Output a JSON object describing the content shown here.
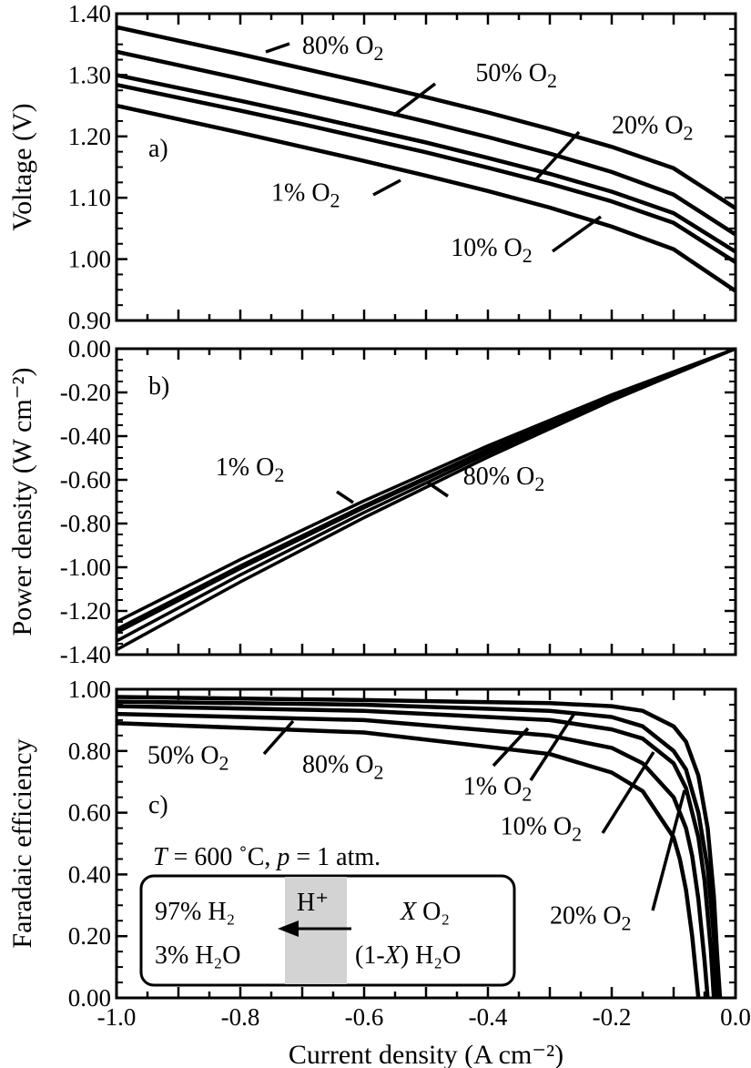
{
  "chart_data": [
    {
      "panel": "a)",
      "type": "line",
      "ylabel": "Voltage (V)",
      "xlabel": "",
      "xlim": [
        -1.0,
        0.0
      ],
      "ylim": [
        0.9,
        1.4
      ],
      "ytick_values": [
        0.9,
        1.0,
        1.1,
        1.2,
        1.3,
        1.4
      ],
      "ytick_labels": [
        "0.90",
        "1.00",
        "1.10",
        "1.20",
        "1.30",
        "1.40"
      ],
      "series": [
        {
          "name": "80% O2",
          "x": [
            -1.0,
            -0.9,
            -0.8,
            -0.7,
            -0.6,
            -0.5,
            -0.4,
            -0.3,
            -0.2,
            -0.1,
            0.0
          ],
          "y": [
            1.378,
            1.356,
            1.334,
            1.311,
            1.288,
            1.264,
            1.239,
            1.212,
            1.183,
            1.148,
            1.083
          ]
        },
        {
          "name": "50% O2",
          "x": [
            -1.0,
            -0.9,
            -0.8,
            -0.7,
            -0.6,
            -0.5,
            -0.4,
            -0.3,
            -0.2,
            -0.1,
            0.0
          ],
          "y": [
            1.338,
            1.316,
            1.294,
            1.271,
            1.248,
            1.224,
            1.199,
            1.172,
            1.142,
            1.105,
            1.04
          ]
        },
        {
          "name": "20% O2",
          "x": [
            -1.0,
            -0.9,
            -0.8,
            -0.7,
            -0.6,
            -0.5,
            -0.4,
            -0.3,
            -0.2,
            -0.1,
            0.0
          ],
          "y": [
            1.3,
            1.279,
            1.258,
            1.236,
            1.213,
            1.19,
            1.165,
            1.139,
            1.11,
            1.075,
            1.012
          ]
        },
        {
          "name": "10% O2",
          "x": [
            -1.0,
            -0.9,
            -0.8,
            -0.7,
            -0.6,
            -0.5,
            -0.4,
            -0.3,
            -0.2,
            -0.1,
            0.0
          ],
          "y": [
            1.284,
            1.263,
            1.242,
            1.22,
            1.197,
            1.174,
            1.149,
            1.123,
            1.094,
            1.059,
            0.995
          ]
        },
        {
          "name": "1% O2",
          "x": [
            -1.0,
            -0.9,
            -0.8,
            -0.7,
            -0.6,
            -0.5,
            -0.4,
            -0.3,
            -0.2,
            -0.1,
            0.0
          ],
          "y": [
            1.25,
            1.228,
            1.206,
            1.183,
            1.16,
            1.136,
            1.111,
            1.084,
            1.053,
            1.016,
            0.948
          ]
        }
      ]
    },
    {
      "panel": "b)",
      "type": "line",
      "ylabel": "Power density (W cm⁻²)",
      "xlabel": "",
      "xlim": [
        -1.0,
        0.0
      ],
      "ylim": [
        -1.4,
        0.0
      ],
      "ytick_values": [
        -1.4,
        -1.2,
        -1.0,
        -0.8,
        -0.6,
        -0.4,
        -0.2,
        0.0
      ],
      "ytick_labels": [
        "-1.40",
        "-1.20",
        "-1.00",
        "-0.80",
        "-0.60",
        "-0.40",
        "-0.20",
        "0.00"
      ],
      "series": [
        {
          "name": "80% O2",
          "x": [
            -1.0,
            -0.8,
            -0.6,
            -0.4,
            -0.2,
            0.0
          ],
          "y": [
            -1.378,
            -1.067,
            -0.773,
            -0.496,
            -0.237,
            0.0
          ]
        },
        {
          "name": "50% O2",
          "x": [
            -1.0,
            -0.8,
            -0.6,
            -0.4,
            -0.2,
            0.0
          ],
          "y": [
            -1.338,
            -1.035,
            -0.749,
            -0.48,
            -0.228,
            0.0
          ]
        },
        {
          "name": "20% O2",
          "x": [
            -1.0,
            -0.8,
            -0.6,
            -0.4,
            -0.2,
            0.0
          ],
          "y": [
            -1.3,
            -1.006,
            -0.728,
            -0.466,
            -0.222,
            0.0
          ]
        },
        {
          "name": "10% O2",
          "x": [
            -1.0,
            -0.8,
            -0.6,
            -0.4,
            -0.2,
            0.0
          ],
          "y": [
            -1.284,
            -0.994,
            -0.718,
            -0.46,
            -0.219,
            0.0
          ]
        },
        {
          "name": "1% O2",
          "x": [
            -1.0,
            -0.8,
            -0.6,
            -0.4,
            -0.2,
            0.0
          ],
          "y": [
            -1.25,
            -0.965,
            -0.696,
            -0.444,
            -0.211,
            0.0
          ]
        }
      ]
    },
    {
      "panel": "c)",
      "type": "line",
      "ylabel": "Faradaic efficiency",
      "xlabel": "Current density (A cm⁻²)",
      "xlim": [
        -1.0,
        0.0
      ],
      "ylim": [
        0.0,
        1.0
      ],
      "ytick_values": [
        0.0,
        0.2,
        0.4,
        0.6,
        0.8,
        1.0
      ],
      "ytick_labels": [
        "0.00",
        "0.20",
        "0.40",
        "0.60",
        "0.80",
        "1.00"
      ],
      "xtick_values": [
        -1.0,
        -0.8,
        -0.6,
        -0.4,
        -0.2,
        0.0
      ],
      "xtick_labels": [
        "-1.0",
        "-0.8",
        "-0.6",
        "-0.4",
        "-0.2",
        "0.0"
      ],
      "series": [
        {
          "name": "1% O2",
          "x": [
            -1.0,
            -0.6,
            -0.3,
            -0.2,
            -0.15,
            -0.1,
            -0.08,
            -0.06,
            -0.045,
            -0.035,
            -0.03,
            -0.025
          ],
          "y": [
            0.975,
            0.965,
            0.955,
            0.945,
            0.93,
            0.88,
            0.83,
            0.72,
            0.55,
            0.33,
            0.15,
            0.0
          ]
        },
        {
          "name": "10% O2",
          "x": [
            -1.0,
            -0.6,
            -0.3,
            -0.2,
            -0.15,
            -0.1,
            -0.08,
            -0.06,
            -0.045,
            -0.035,
            -0.03
          ],
          "y": [
            0.96,
            0.95,
            0.93,
            0.91,
            0.88,
            0.8,
            0.74,
            0.6,
            0.42,
            0.2,
            0.0
          ]
        },
        {
          "name": "20% O2",
          "x": [
            -1.0,
            -0.6,
            -0.3,
            -0.2,
            -0.15,
            -0.1,
            -0.08,
            -0.06,
            -0.05,
            -0.04,
            -0.035
          ],
          "y": [
            0.945,
            0.93,
            0.9,
            0.87,
            0.84,
            0.76,
            0.68,
            0.52,
            0.38,
            0.16,
            0.0
          ]
        },
        {
          "name": "50% O2",
          "x": [
            -1.0,
            -0.6,
            -0.3,
            -0.2,
            -0.15,
            -0.1,
            -0.08,
            -0.07,
            -0.06,
            -0.05,
            -0.045
          ],
          "y": [
            0.92,
            0.9,
            0.85,
            0.81,
            0.76,
            0.65,
            0.55,
            0.46,
            0.32,
            0.12,
            0.0
          ]
        },
        {
          "name": "80% O2",
          "x": [
            -1.0,
            -0.6,
            -0.3,
            -0.2,
            -0.15,
            -0.1,
            -0.09,
            -0.08,
            -0.07,
            -0.065,
            -0.06
          ],
          "y": [
            0.89,
            0.86,
            0.79,
            0.73,
            0.67,
            0.52,
            0.45,
            0.35,
            0.2,
            0.1,
            0.0
          ]
        }
      ]
    }
  ],
  "annotations": {
    "a": [
      {
        "text": "80% O₂",
        "x": -0.7,
        "y": 1.335
      },
      {
        "text": "50% O₂",
        "x": -0.42,
        "y": 1.29
      },
      {
        "text": "20% O₂",
        "x": -0.2,
        "y": 1.205
      },
      {
        "text": "1% O₂",
        "x": -0.75,
        "y": 1.095
      },
      {
        "text": "10% O₂",
        "x": -0.46,
        "y": 1.005
      }
    ],
    "b": [
      {
        "text": "1% O₂",
        "x": -0.84,
        "y": -0.58
      },
      {
        "text": "80% O₂",
        "x": -0.44,
        "y": -0.62
      }
    ],
    "c": [
      {
        "text": "50% O₂",
        "x": -0.95,
        "y": 0.76
      },
      {
        "text": "80% O₂",
        "x": -0.7,
        "y": 0.73
      },
      {
        "text": "1% O₂",
        "x": -0.44,
        "y": 0.66
      },
      {
        "text": "10% O₂",
        "x": -0.38,
        "y": 0.53
      },
      {
        "text": "20% O₂",
        "x": -0.3,
        "y": 0.24
      }
    ]
  },
  "conditions_text": {
    "T": "T",
    "T_rest": " = 600 ˚C,  ",
    "p": "p",
    "p_rest": " = 1 atm."
  },
  "cell_box": {
    "anode_h2": "97% H₂",
    "anode_h2o": "3% H₂O",
    "proton": "H⁺",
    "cathode_x": "X",
    "cathode_o2": " O₂",
    "cathode_1": "(1-",
    "cathode_x2": "X",
    "cathode_h2o": ") H₂O"
  },
  "colors": {
    "line": "#000000",
    "electrolyte": "#d3d3d3"
  }
}
